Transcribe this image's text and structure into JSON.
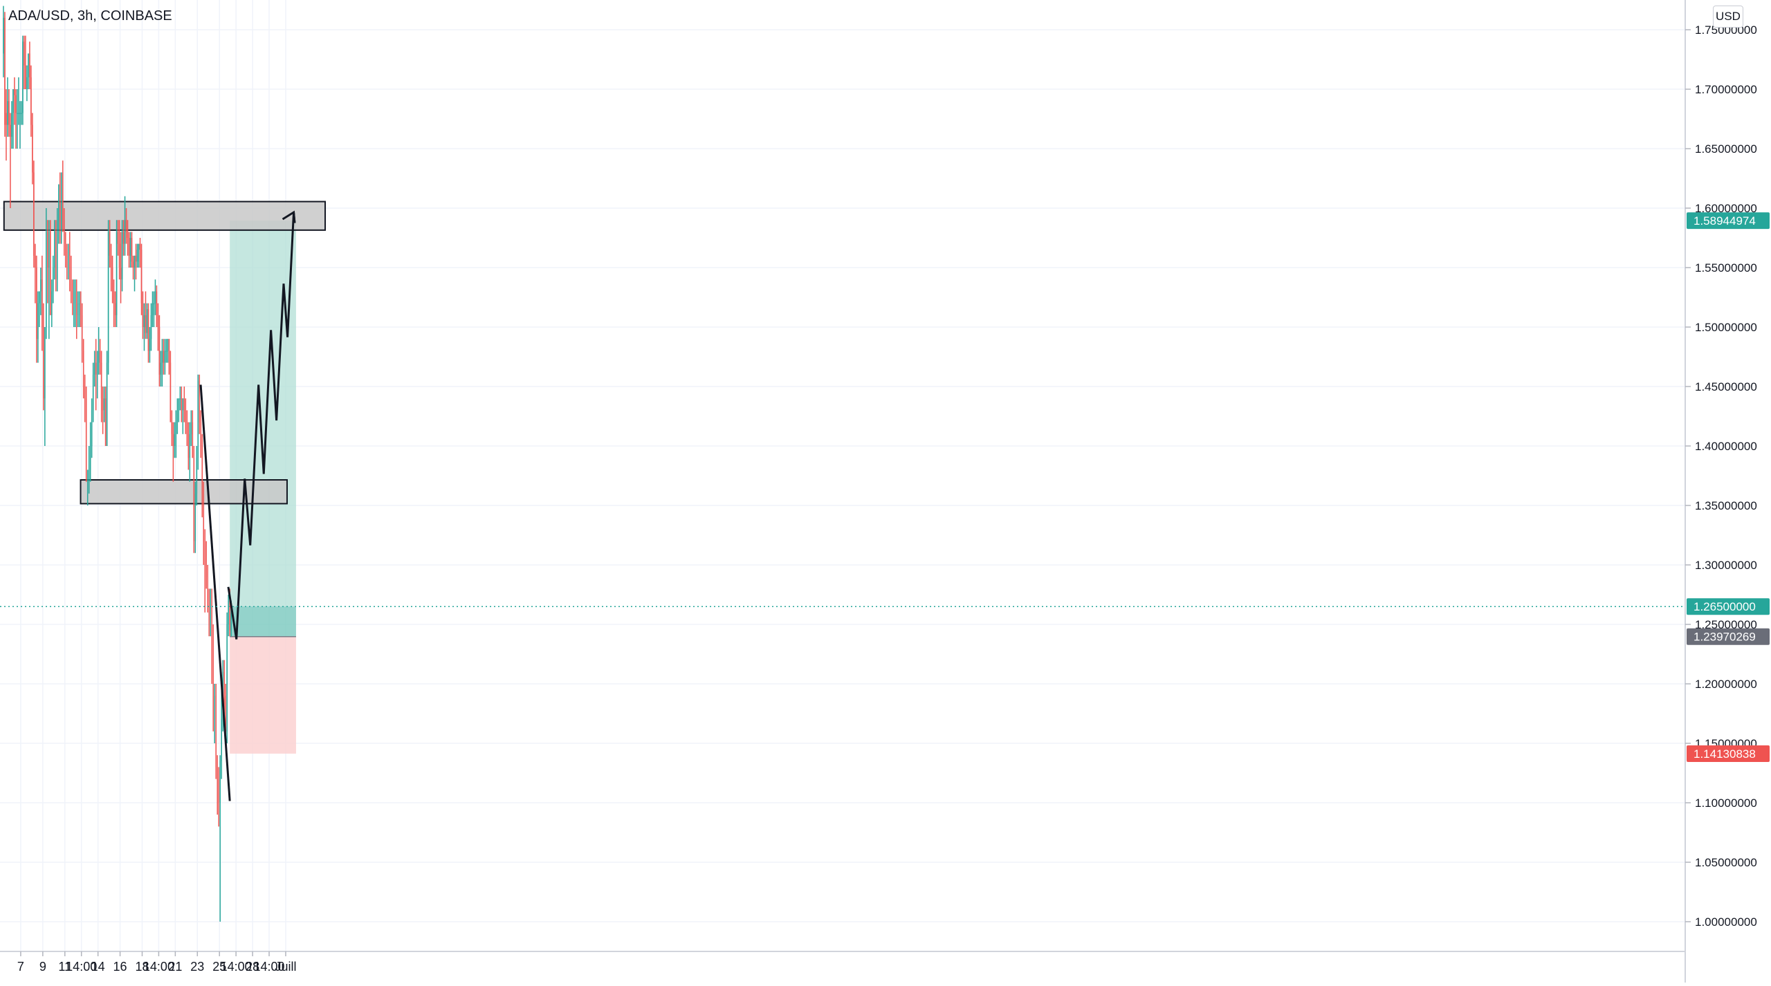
{
  "header": {
    "symbol_title": "ADA/USD, 3h, COINBASE",
    "currency": "USD"
  },
  "colors": {
    "up": "#26a69a",
    "down": "#ef5350",
    "zone_fill": "#c8c8c8",
    "target_fill": "#b2dfd6",
    "stop_fill": "#fcd1d1",
    "last_price_badge": "#26a69a",
    "entry_badge": "#6a6d78",
    "stop_badge": "#ef5350",
    "grid": "#f0f3fa"
  },
  "chart_data": {
    "type": "candlestick",
    "instrument": "ADA/USD",
    "interval": "3h",
    "exchange": "COINBASE",
    "y_unit": "USD",
    "ylim": [
      0.975,
      1.775
    ],
    "x_domain_bars": [
      -2,
      1219
    ],
    "y_ticks": [
      1.0,
      1.05,
      1.1,
      1.15,
      1.2,
      1.25,
      1.3,
      1.35,
      1.4,
      1.45,
      1.5,
      1.55,
      1.6,
      1.65,
      1.7,
      1.75
    ],
    "y_tick_labels": [
      "1.00000000",
      "1.05000000",
      "1.10000000",
      "1.15000000",
      "1.20000000",
      "1.25000000",
      "1.30000000",
      "1.35000000",
      "1.40000000",
      "1.45000000",
      "1.50000000",
      "1.55000000",
      "1.60000000",
      "1.65000000",
      "1.70000000",
      "1.75000000"
    ],
    "x_ticks": [
      {
        "bar": 13,
        "label": "7"
      },
      {
        "bar": 29,
        "label": "9"
      },
      {
        "bar": 45,
        "label": "11"
      },
      {
        "bar": 57,
        "label": "14:00"
      },
      {
        "bar": 69,
        "label": "14"
      },
      {
        "bar": 85,
        "label": "16"
      },
      {
        "bar": 101,
        "label": "18"
      },
      {
        "bar": 113,
        "label": "14:00"
      },
      {
        "bar": 125,
        "label": "21"
      },
      {
        "bar": 141,
        "label": "23"
      },
      {
        "bar": 157,
        "label": "25"
      },
      {
        "bar": 169,
        "label": "14:00"
      },
      {
        "bar": 181,
        "label": "28"
      },
      {
        "bar": 193,
        "label": "14:00"
      },
      {
        "bar": 205,
        "label": "Juill"
      }
    ],
    "grid": true,
    "candles": [
      {
        "o": 1.73,
        "h": 1.77,
        "l": 1.71,
        "c": 1.76
      },
      {
        "o": 1.76,
        "h": 1.765,
        "l": 1.66,
        "c": 1.67
      },
      {
        "o": 1.68,
        "h": 1.7,
        "l": 1.64,
        "c": 1.67
      },
      {
        "o": 1.67,
        "h": 1.71,
        "l": 1.66,
        "c": 1.69
      },
      {
        "o": 1.69,
        "h": 1.7,
        "l": 1.66,
        "c": 1.67
      },
      {
        "o": 1.67,
        "h": 1.68,
        "l": 1.6,
        "c": 1.66
      },
      {
        "o": 1.66,
        "h": 1.69,
        "l": 1.65,
        "c": 1.68
      },
      {
        "o": 1.68,
        "h": 1.7,
        "l": 1.65,
        "c": 1.7
      },
      {
        "o": 1.7,
        "h": 1.71,
        "l": 1.67,
        "c": 1.695
      },
      {
        "o": 1.695,
        "h": 1.7,
        "l": 1.65,
        "c": 1.68
      },
      {
        "o": 1.68,
        "h": 1.7,
        "l": 1.65,
        "c": 1.68
      },
      {
        "o": 1.68,
        "h": 1.71,
        "l": 1.67,
        "c": 1.68
      },
      {
        "o": 1.68,
        "h": 1.69,
        "l": 1.65,
        "c": 1.68
      },
      {
        "o": 1.68,
        "h": 1.69,
        "l": 1.67,
        "c": 1.68
      },
      {
        "o": 1.68,
        "h": 1.745,
        "l": 1.67,
        "c": 1.74
      },
      {
        "o": 1.74,
        "h": 1.745,
        "l": 1.7,
        "c": 1.72
      },
      {
        "o": 1.72,
        "h": 1.745,
        "l": 1.7,
        "c": 1.7
      },
      {
        "o": 1.7,
        "h": 1.72,
        "l": 1.69,
        "c": 1.71
      },
      {
        "o": 1.71,
        "h": 1.73,
        "l": 1.7,
        "c": 1.73
      },
      {
        "o": 1.73,
        "h": 1.74,
        "l": 1.7,
        "c": 1.71
      },
      {
        "o": 1.71,
        "h": 1.72,
        "l": 1.66,
        "c": 1.67
      },
      {
        "o": 1.67,
        "h": 1.68,
        "l": 1.62,
        "c": 1.63
      },
      {
        "o": 1.63,
        "h": 1.64,
        "l": 1.55,
        "c": 1.56
      },
      {
        "o": 1.56,
        "h": 1.57,
        "l": 1.52,
        "c": 1.55
      },
      {
        "o": 1.55,
        "h": 1.56,
        "l": 1.47,
        "c": 1.49
      },
      {
        "o": 1.49,
        "h": 1.53,
        "l": 1.47,
        "c": 1.52
      },
      {
        "o": 1.52,
        "h": 1.53,
        "l": 1.5,
        "c": 1.53
      },
      {
        "o": 1.53,
        "h": 1.55,
        "l": 1.51,
        "c": 1.54
      },
      {
        "o": 1.54,
        "h": 1.56,
        "l": 1.48,
        "c": 1.5
      },
      {
        "o": 1.5,
        "h": 1.52,
        "l": 1.43,
        "c": 1.44
      },
      {
        "o": 1.44,
        "h": 1.5,
        "l": 1.4,
        "c": 1.5
      },
      {
        "o": 1.5,
        "h": 1.6,
        "l": 1.49,
        "c": 1.58
      },
      {
        "o": 1.58,
        "h": 1.59,
        "l": 1.52,
        "c": 1.55
      },
      {
        "o": 1.55,
        "h": 1.59,
        "l": 1.49,
        "c": 1.58
      },
      {
        "o": 1.58,
        "h": 1.59,
        "l": 1.51,
        "c": 1.51
      },
      {
        "o": 1.51,
        "h": 1.54,
        "l": 1.5,
        "c": 1.53
      },
      {
        "o": 1.53,
        "h": 1.56,
        "l": 1.52,
        "c": 1.55
      },
      {
        "o": 1.55,
        "h": 1.59,
        "l": 1.54,
        "c": 1.58
      },
      {
        "o": 1.58,
        "h": 1.59,
        "l": 1.53,
        "c": 1.54
      },
      {
        "o": 1.54,
        "h": 1.6,
        "l": 1.53,
        "c": 1.59
      },
      {
        "o": 1.59,
        "h": 1.62,
        "l": 1.57,
        "c": 1.62
      },
      {
        "o": 1.62,
        "h": 1.63,
        "l": 1.57,
        "c": 1.58
      },
      {
        "o": 1.58,
        "h": 1.63,
        "l": 1.57,
        "c": 1.63
      },
      {
        "o": 1.63,
        "h": 1.64,
        "l": 1.58,
        "c": 1.59
      },
      {
        "o": 1.59,
        "h": 1.6,
        "l": 1.56,
        "c": 1.57
      },
      {
        "o": 1.57,
        "h": 1.58,
        "l": 1.55,
        "c": 1.56
      },
      {
        "o": 1.56,
        "h": 1.57,
        "l": 1.54,
        "c": 1.55
      },
      {
        "o": 1.55,
        "h": 1.57,
        "l": 1.54,
        "c": 1.57
      },
      {
        "o": 1.57,
        "h": 1.58,
        "l": 1.53,
        "c": 1.55
      },
      {
        "o": 1.55,
        "h": 1.56,
        "l": 1.52,
        "c": 1.53
      },
      {
        "o": 1.53,
        "h": 1.54,
        "l": 1.51,
        "c": 1.52
      },
      {
        "o": 1.52,
        "h": 1.54,
        "l": 1.5,
        "c": 1.52
      },
      {
        "o": 1.52,
        "h": 1.54,
        "l": 1.5,
        "c": 1.53
      },
      {
        "o": 1.53,
        "h": 1.54,
        "l": 1.49,
        "c": 1.51
      },
      {
        "o": 1.51,
        "h": 1.53,
        "l": 1.5,
        "c": 1.52
      },
      {
        "o": 1.52,
        "h": 1.53,
        "l": 1.5,
        "c": 1.52
      },
      {
        "o": 1.52,
        "h": 1.53,
        "l": 1.5,
        "c": 1.51
      },
      {
        "o": 1.51,
        "h": 1.52,
        "l": 1.47,
        "c": 1.48
      },
      {
        "o": 1.48,
        "h": 1.49,
        "l": 1.44,
        "c": 1.45
      },
      {
        "o": 1.45,
        "h": 1.46,
        "l": 1.42,
        "c": 1.44
      },
      {
        "o": 1.44,
        "h": 1.45,
        "l": 1.37,
        "c": 1.37
      },
      {
        "o": 1.37,
        "h": 1.38,
        "l": 1.35,
        "c": 1.37
      },
      {
        "o": 1.37,
        "h": 1.4,
        "l": 1.36,
        "c": 1.38
      },
      {
        "o": 1.38,
        "h": 1.42,
        "l": 1.37,
        "c": 1.4
      },
      {
        "o": 1.4,
        "h": 1.44,
        "l": 1.39,
        "c": 1.43
      },
      {
        "o": 1.43,
        "h": 1.47,
        "l": 1.42,
        "c": 1.46
      },
      {
        "o": 1.46,
        "h": 1.48,
        "l": 1.45,
        "c": 1.47
      },
      {
        "o": 1.47,
        "h": 1.49,
        "l": 1.43,
        "c": 1.46
      },
      {
        "o": 1.46,
        "h": 1.48,
        "l": 1.44,
        "c": 1.47
      },
      {
        "o": 1.47,
        "h": 1.5,
        "l": 1.46,
        "c": 1.48
      },
      {
        "o": 1.48,
        "h": 1.49,
        "l": 1.46,
        "c": 1.47
      },
      {
        "o": 1.47,
        "h": 1.48,
        "l": 1.42,
        "c": 1.44
      },
      {
        "o": 1.44,
        "h": 1.45,
        "l": 1.41,
        "c": 1.43
      },
      {
        "o": 1.43,
        "h": 1.45,
        "l": 1.42,
        "c": 1.44
      },
      {
        "o": 1.44,
        "h": 1.45,
        "l": 1.4,
        "c": 1.4
      },
      {
        "o": 1.4,
        "h": 1.48,
        "l": 1.4,
        "c": 1.47
      },
      {
        "o": 1.47,
        "h": 1.59,
        "l": 1.46,
        "c": 1.58
      },
      {
        "o": 1.58,
        "h": 1.59,
        "l": 1.55,
        "c": 1.56
      },
      {
        "o": 1.56,
        "h": 1.57,
        "l": 1.53,
        "c": 1.55
      },
      {
        "o": 1.55,
        "h": 1.56,
        "l": 1.52,
        "c": 1.53
      },
      {
        "o": 1.53,
        "h": 1.54,
        "l": 1.5,
        "c": 1.52
      },
      {
        "o": 1.52,
        "h": 1.53,
        "l": 1.5,
        "c": 1.51
      },
      {
        "o": 1.51,
        "h": 1.59,
        "l": 1.5,
        "c": 1.58
      },
      {
        "o": 1.58,
        "h": 1.59,
        "l": 1.56,
        "c": 1.57
      },
      {
        "o": 1.57,
        "h": 1.59,
        "l": 1.54,
        "c": 1.55
      },
      {
        "o": 1.55,
        "h": 1.58,
        "l": 1.52,
        "c": 1.54
      },
      {
        "o": 1.54,
        "h": 1.59,
        "l": 1.53,
        "c": 1.58
      },
      {
        "o": 1.58,
        "h": 1.59,
        "l": 1.56,
        "c": 1.57
      },
      {
        "o": 1.57,
        "h": 1.61,
        "l": 1.56,
        "c": 1.59
      },
      {
        "o": 1.59,
        "h": 1.6,
        "l": 1.57,
        "c": 1.58
      },
      {
        "o": 1.58,
        "h": 1.59,
        "l": 1.56,
        "c": 1.575
      },
      {
        "o": 1.575,
        "h": 1.58,
        "l": 1.55,
        "c": 1.56
      },
      {
        "o": 1.56,
        "h": 1.58,
        "l": 1.55,
        "c": 1.575
      },
      {
        "o": 1.575,
        "h": 1.58,
        "l": 1.55,
        "c": 1.555
      },
      {
        "o": 1.555,
        "h": 1.56,
        "l": 1.54,
        "c": 1.55
      },
      {
        "o": 1.55,
        "h": 1.56,
        "l": 1.53,
        "c": 1.56
      },
      {
        "o": 1.56,
        "h": 1.57,
        "l": 1.54,
        "c": 1.555
      },
      {
        "o": 1.555,
        "h": 1.57,
        "l": 1.55,
        "c": 1.565
      },
      {
        "o": 1.565,
        "h": 1.57,
        "l": 1.55,
        "c": 1.57
      },
      {
        "o": 1.57,
        "h": 1.575,
        "l": 1.55,
        "c": 1.565
      },
      {
        "o": 1.565,
        "h": 1.57,
        "l": 1.51,
        "c": 1.52
      },
      {
        "o": 1.52,
        "h": 1.53,
        "l": 1.49,
        "c": 1.5
      },
      {
        "o": 1.5,
        "h": 1.52,
        "l": 1.48,
        "c": 1.51
      },
      {
        "o": 1.51,
        "h": 1.53,
        "l": 1.49,
        "c": 1.495
      },
      {
        "o": 1.495,
        "h": 1.52,
        "l": 1.49,
        "c": 1.515
      },
      {
        "o": 1.515,
        "h": 1.52,
        "l": 1.47,
        "c": 1.48
      },
      {
        "o": 1.48,
        "h": 1.5,
        "l": 1.47,
        "c": 1.49
      },
      {
        "o": 1.49,
        "h": 1.52,
        "l": 1.48,
        "c": 1.51
      },
      {
        "o": 1.51,
        "h": 1.53,
        "l": 1.5,
        "c": 1.52
      },
      {
        "o": 1.52,
        "h": 1.53,
        "l": 1.5,
        "c": 1.52
      },
      {
        "o": 1.52,
        "h": 1.54,
        "l": 1.51,
        "c": 1.53
      },
      {
        "o": 1.53,
        "h": 1.535,
        "l": 1.5,
        "c": 1.51
      },
      {
        "o": 1.51,
        "h": 1.52,
        "l": 1.48,
        "c": 1.5
      },
      {
        "o": 1.5,
        "h": 1.51,
        "l": 1.45,
        "c": 1.46
      },
      {
        "o": 1.46,
        "h": 1.48,
        "l": 1.45,
        "c": 1.47
      },
      {
        "o": 1.47,
        "h": 1.49,
        "l": 1.45,
        "c": 1.48
      },
      {
        "o": 1.48,
        "h": 1.49,
        "l": 1.46,
        "c": 1.47
      },
      {
        "o": 1.47,
        "h": 1.49,
        "l": 1.46,
        "c": 1.48
      },
      {
        "o": 1.48,
        "h": 1.49,
        "l": 1.47,
        "c": 1.48
      },
      {
        "o": 1.48,
        "h": 1.49,
        "l": 1.47,
        "c": 1.49
      },
      {
        "o": 1.49,
        "h": 1.49,
        "l": 1.46,
        "c": 1.47
      },
      {
        "o": 1.47,
        "h": 1.48,
        "l": 1.42,
        "c": 1.42
      },
      {
        "o": 1.42,
        "h": 1.43,
        "l": 1.4,
        "c": 1.41
      },
      {
        "o": 1.41,
        "h": 1.42,
        "l": 1.37,
        "c": 1.4
      },
      {
        "o": 1.4,
        "h": 1.42,
        "l": 1.39,
        "c": 1.41
      },
      {
        "o": 1.41,
        "h": 1.43,
        "l": 1.39,
        "c": 1.42
      },
      {
        "o": 1.42,
        "h": 1.44,
        "l": 1.41,
        "c": 1.43
      },
      {
        "o": 1.43,
        "h": 1.44,
        "l": 1.42,
        "c": 1.44
      },
      {
        "o": 1.44,
        "h": 1.45,
        "l": 1.43,
        "c": 1.44
      },
      {
        "o": 1.44,
        "h": 1.45,
        "l": 1.42,
        "c": 1.43
      },
      {
        "o": 1.43,
        "h": 1.44,
        "l": 1.41,
        "c": 1.44
      },
      {
        "o": 1.44,
        "h": 1.45,
        "l": 1.42,
        "c": 1.43
      },
      {
        "o": 1.43,
        "h": 1.44,
        "l": 1.41,
        "c": 1.42
      },
      {
        "o": 1.42,
        "h": 1.43,
        "l": 1.4,
        "c": 1.41
      },
      {
        "o": 1.41,
        "h": 1.42,
        "l": 1.38,
        "c": 1.39
      },
      {
        "o": 1.39,
        "h": 1.42,
        "l": 1.37,
        "c": 1.41
      },
      {
        "o": 1.41,
        "h": 1.43,
        "l": 1.4,
        "c": 1.42
      },
      {
        "o": 1.42,
        "h": 1.43,
        "l": 1.39,
        "c": 1.39
      },
      {
        "o": 1.39,
        "h": 1.4,
        "l": 1.31,
        "c": 1.32
      },
      {
        "o": 1.32,
        "h": 1.37,
        "l": 1.31,
        "c": 1.36
      },
      {
        "o": 1.36,
        "h": 1.4,
        "l": 1.35,
        "c": 1.39
      },
      {
        "o": 1.39,
        "h": 1.46,
        "l": 1.38,
        "c": 1.455
      },
      {
        "o": 1.455,
        "h": 1.46,
        "l": 1.41,
        "c": 1.42
      },
      {
        "o": 1.42,
        "h": 1.43,
        "l": 1.39,
        "c": 1.4
      },
      {
        "o": 1.4,
        "h": 1.41,
        "l": 1.34,
        "c": 1.36
      },
      {
        "o": 1.36,
        "h": 1.37,
        "l": 1.3,
        "c": 1.32
      },
      {
        "o": 1.32,
        "h": 1.33,
        "l": 1.26,
        "c": 1.3
      },
      {
        "o": 1.3,
        "h": 1.32,
        "l": 1.28,
        "c": 1.29
      },
      {
        "o": 1.29,
        "h": 1.3,
        "l": 1.26,
        "c": 1.27
      },
      {
        "o": 1.27,
        "h": 1.28,
        "l": 1.24,
        "c": 1.25
      },
      {
        "o": 1.25,
        "h": 1.28,
        "l": 1.24,
        "c": 1.27
      },
      {
        "o": 1.27,
        "h": 1.28,
        "l": 1.2,
        "c": 1.24
      },
      {
        "o": 1.24,
        "h": 1.25,
        "l": 1.16,
        "c": 1.17
      },
      {
        "o": 1.17,
        "h": 1.2,
        "l": 1.15,
        "c": 1.19
      },
      {
        "o": 1.19,
        "h": 1.2,
        "l": 1.12,
        "c": 1.13
      },
      {
        "o": 1.13,
        "h": 1.14,
        "l": 1.09,
        "c": 1.12
      },
      {
        "o": 1.12,
        "h": 1.13,
        "l": 1.08,
        "c": 1.1
      },
      {
        "o": 1.1,
        "h": 1.14,
        "l": 1.0,
        "c": 1.135
      },
      {
        "o": 1.135,
        "h": 1.2,
        "l": 1.12,
        "c": 1.17
      },
      {
        "o": 1.17,
        "h": 1.22,
        "l": 1.16,
        "c": 1.21
      },
      {
        "o": 1.21,
        "h": 1.22,
        "l": 1.17,
        "c": 1.19
      },
      {
        "o": 1.19,
        "h": 1.2,
        "l": 1.15,
        "c": 1.16
      },
      {
        "o": 1.16,
        "h": 1.26,
        "l": 1.15,
        "c": 1.25
      },
      {
        "o": 1.25,
        "h": 1.275,
        "l": 1.24,
        "c": 1.27
      },
      {
        "o": 1.27,
        "h": 1.28,
        "l": 1.24,
        "c": 1.245
      },
      {
        "o": 1.245,
        "h": 1.27,
        "l": 1.24,
        "c": 1.265
      }
    ],
    "last_price": 1.265,
    "position": {
      "type": "long",
      "entry": 1.23970269,
      "target": 1.58944974,
      "stop": 1.14130838,
      "start_bar": 164.5,
      "end_bar": 212.5
    },
    "zones": [
      {
        "y_top": 1.6055,
        "y_bottom": 1.5815,
        "start_bar": 0.9,
        "end_bar": 233.6
      },
      {
        "y_top": 1.3715,
        "y_bottom": 1.3515,
        "start_bar": 56.4,
        "end_bar": 206.0
      }
    ],
    "drawn_lines": [
      {
        "points": [
          [
            143.4,
            1.4515
          ],
          [
            164.5,
            1.1015
          ]
        ]
      },
      {
        "points": [
          [
            163.4,
            1.2815
          ],
          [
            169.3,
            1.2375
          ],
          [
            175.3,
            1.3725
          ],
          [
            179.3,
            1.3165
          ],
          [
            185.3,
            1.4515
          ],
          [
            189.1,
            1.3765
          ],
          [
            194.3,
            1.4975
          ],
          [
            198.3,
            1.4215
          ],
          [
            203.5,
            1.5365
          ],
          [
            206.3,
            1.4915
          ],
          [
            210.8,
            1.5965
          ],
          [
            211.5,
            1.5875
          ]
        ]
      }
    ],
    "price_labels": [
      {
        "value": 1.58944974,
        "text": "1.58944974"
      },
      {
        "value": 1.265,
        "text": "1.26500000"
      },
      {
        "value": 1.23970269,
        "text": "1.23970269"
      },
      {
        "value": 1.14130838,
        "text": "1.14130838"
      }
    ]
  }
}
